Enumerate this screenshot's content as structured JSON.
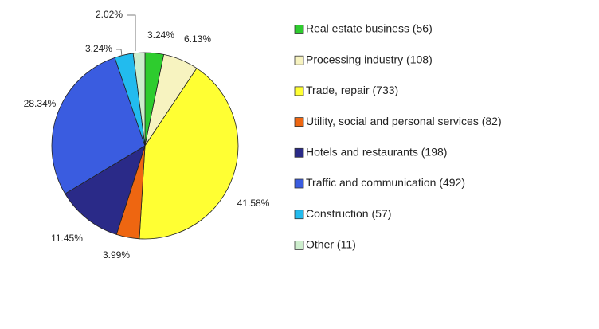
{
  "chart_data": {
    "type": "pie",
    "categories": [
      "Real estate business (56)",
      "Processing industry (108)",
      "Trade, repair (733)",
      "Utility, social and personal services (82)",
      "Hotels and restaurants (198)",
      "Traffic and communication (492)",
      "Construction (57)",
      "Other (11)"
    ],
    "values": [
      3.24,
      6.13,
      41.58,
      3.99,
      11.45,
      28.34,
      3.24,
      2.02
    ],
    "value_labels": [
      "3.24%",
      "6.13%",
      "41.58%",
      "3.99%",
      "11.45%",
      "28.34%",
      "3.24%",
      "2.02%"
    ],
    "colors": [
      "#2ecc2e",
      "#f7f3c0",
      "#ffff33",
      "#ee6611",
      "#2a2a88",
      "#3a5ce0",
      "#22bbee",
      "#cdeecd"
    ]
  }
}
